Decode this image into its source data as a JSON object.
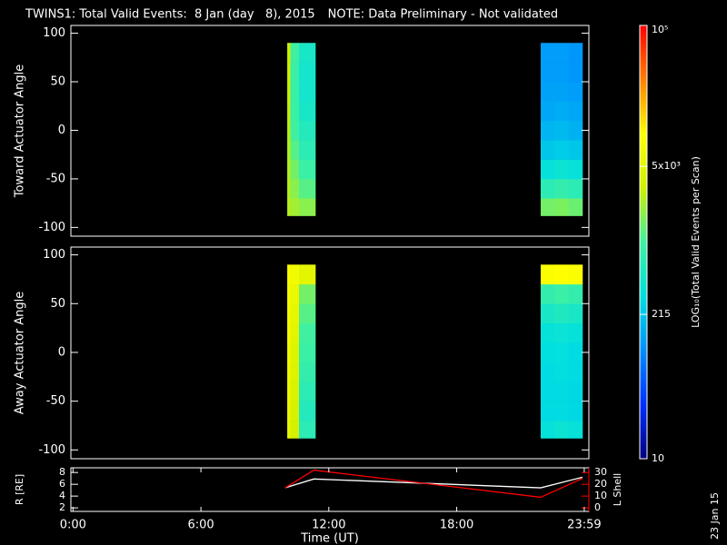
{
  "chart_data": [
    {
      "type": "heatmap",
      "title": "TWINS1: Total Valid Events:  8 Jan (day   8), 2015",
      "note": "NOTE: Data Preliminary - Not validated",
      "note_color": "#ff0000",
      "ylabel": "Toward Actuator Angle",
      "xlim": [
        -0.1,
        24.2
      ],
      "ylim": [
        -109,
        108
      ],
      "yticks": [
        -100,
        -50,
        0,
        50,
        100
      ],
      "x_bins": [
        10.05,
        10.2,
        10.6,
        11.37,
        21.94,
        22.6,
        23.25,
        23.9
      ],
      "y_bins": [
        -88,
        -70,
        -50,
        -30,
        -10,
        10,
        30,
        50,
        70,
        90
      ],
      "values": [
        [
          2500,
          2200,
          1800,
          null,
          1500,
          1600,
          1400
        ],
        [
          2500,
          1800,
          1200,
          null,
          700,
          800,
          700
        ],
        [
          2500,
          1500,
          900,
          null,
          350,
          400,
          350
        ],
        [
          2500,
          1200,
          700,
          null,
          220,
          240,
          220
        ],
        [
          2600,
          1000,
          600,
          null,
          170,
          180,
          160
        ],
        [
          2800,
          900,
          500,
          null,
          140,
          150,
          140
        ],
        [
          3000,
          900,
          450,
          null,
          130,
          130,
          120
        ],
        [
          3200,
          900,
          450,
          null,
          120,
          120,
          110
        ],
        [
          3200,
          1000,
          500,
          null,
          120,
          120,
          110
        ]
      ]
    },
    {
      "type": "heatmap",
      "ylabel": "Away Actuator Angle",
      "xlim": [
        -0.1,
        24.2
      ],
      "ylim": [
        -109,
        108
      ],
      "yticks": [
        -100,
        -50,
        0,
        50,
        100
      ],
      "x_bins": [
        10.05,
        10.2,
        10.6,
        11.37,
        21.94,
        22.6,
        23.25,
        23.9
      ],
      "y_bins": [
        -88,
        -70,
        -50,
        -30,
        -10,
        10,
        30,
        50,
        70,
        90
      ],
      "values": [
        [
          6000,
          3500,
          700,
          null,
          350,
          400,
          350
        ],
        [
          6500,
          3800,
          600,
          null,
          300,
          300,
          280
        ],
        [
          7000,
          4000,
          700,
          null,
          300,
          300,
          280
        ],
        [
          7000,
          4200,
          800,
          null,
          300,
          320,
          300
        ],
        [
          7500,
          4500,
          900,
          null,
          320,
          330,
          300
        ],
        [
          8000,
          5000,
          1000,
          null,
          350,
          380,
          350
        ],
        [
          8000,
          5500,
          1200,
          null,
          500,
          550,
          500
        ],
        [
          8500,
          6000,
          1500,
          null,
          800,
          900,
          800
        ],
        [
          9000,
          7500,
          5000,
          null,
          9000,
          10000,
          9000
        ]
      ]
    },
    {
      "type": "line",
      "xlabel": "Time (UT)",
      "ylabel": "R [RE]",
      "y2label": "L Shell",
      "xlim": [
        -0.1,
        24.2
      ],
      "xticks": [
        {
          "value": 0,
          "label": "0:00"
        },
        {
          "value": 6,
          "label": "6:00"
        },
        {
          "value": 12,
          "label": "12:00"
        },
        {
          "value": 18,
          "label": "18:00"
        },
        {
          "value": 23.983,
          "label": "23:59"
        }
      ],
      "ylim": [
        1.4,
        8.8
      ],
      "yticks": [
        2,
        4,
        6,
        8
      ],
      "y2lim": [
        -3,
        34
      ],
      "y2ticks": [
        0,
        10,
        20,
        30
      ],
      "x": [
        9.95,
        11.3,
        21.94,
        23.9
      ],
      "series": [
        {
          "color": "#ffffff",
          "values": [
            5.4,
            6.9,
            5.4,
            7.2
          ]
        },
        {
          "color": "#ff0000",
          "axis": "y2",
          "values": [
            17,
            32,
            9,
            25
          ]
        }
      ]
    },
    {
      "type": "colorbar",
      "label": "LOG₁₀(Total Valid Events per Scan)",
      "lim": [
        10,
        100000
      ],
      "log": true,
      "ticks": [
        10,
        215,
        {
          "value": 5000,
          "label": "5x10³"
        },
        {
          "value": 100000,
          "label": "10⁵"
        }
      ],
      "colors": [
        "#000080",
        "#0030ff",
        "#0090ff",
        "#00e0e0",
        "#40f0a0",
        "#d0f000",
        "#ffff00",
        "#ff8000",
        "#ff0000"
      ]
    }
  ],
  "stamp": "23 Jan 15"
}
